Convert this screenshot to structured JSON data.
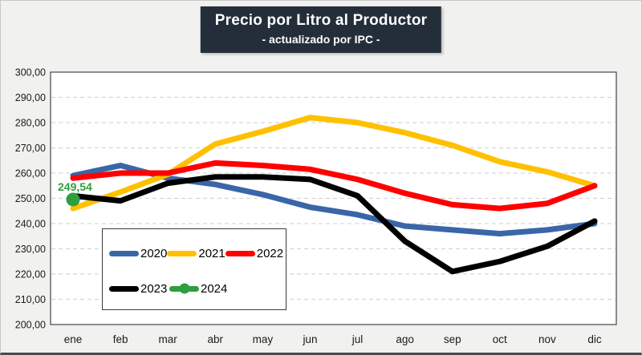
{
  "title": {
    "line1": "Precio por Litro al Productor",
    "line2": "- actualizado por IPC -"
  },
  "chart_data": {
    "type": "line",
    "title": "Precio por Litro al Productor",
    "subtitle": "- actualizado por IPC -",
    "categories": [
      "ene",
      "feb",
      "mar",
      "abr",
      "may",
      "jun",
      "jul",
      "ago",
      "sep",
      "oct",
      "nov",
      "dic"
    ],
    "series": [
      {
        "name": "2020",
        "color": "#3a66a8",
        "values": [
          259,
          263,
          258,
          255.5,
          251.5,
          246.5,
          243.5,
          239,
          237.5,
          236,
          237.5,
          240
        ]
      },
      {
        "name": "2021",
        "color": "#ffc000",
        "values": [
          246,
          252.5,
          259.5,
          271.5,
          276.5,
          282,
          280,
          276,
          271,
          264.5,
          260.5,
          255
        ]
      },
      {
        "name": "2022",
        "color": "#ff0000",
        "values": [
          258,
          260,
          260,
          264,
          263,
          261.5,
          257.5,
          252,
          247.5,
          246,
          248,
          255
        ]
      },
      {
        "name": "2023",
        "color": "#000000",
        "values": [
          251,
          249,
          256,
          258.5,
          258.5,
          257.5,
          251,
          233,
          221,
          225,
          231,
          241
        ]
      },
      {
        "name": "2024",
        "color": "#2f9e3f",
        "marker": true,
        "point_label": "249,54",
        "values": [
          249.54,
          null,
          null,
          null,
          null,
          null,
          null,
          null,
          null,
          null,
          null,
          null
        ]
      }
    ],
    "ylim": [
      200,
      300
    ],
    "y_tick_step": 10,
    "y_tick_labels": [
      "200,00",
      "210,00",
      "220,00",
      "230,00",
      "240,00",
      "250,00",
      "260,00",
      "270,00",
      "280,00",
      "290,00",
      "300,00"
    ],
    "grid": "horizontal dashed",
    "gridline_color": "#d6d6d6",
    "plot_border_color": "#454545",
    "legend_position": "inside bottom-left",
    "legend_rows": [
      [
        "2020",
        "2021",
        "2022"
      ],
      [
        "2023",
        "2024"
      ]
    ]
  }
}
